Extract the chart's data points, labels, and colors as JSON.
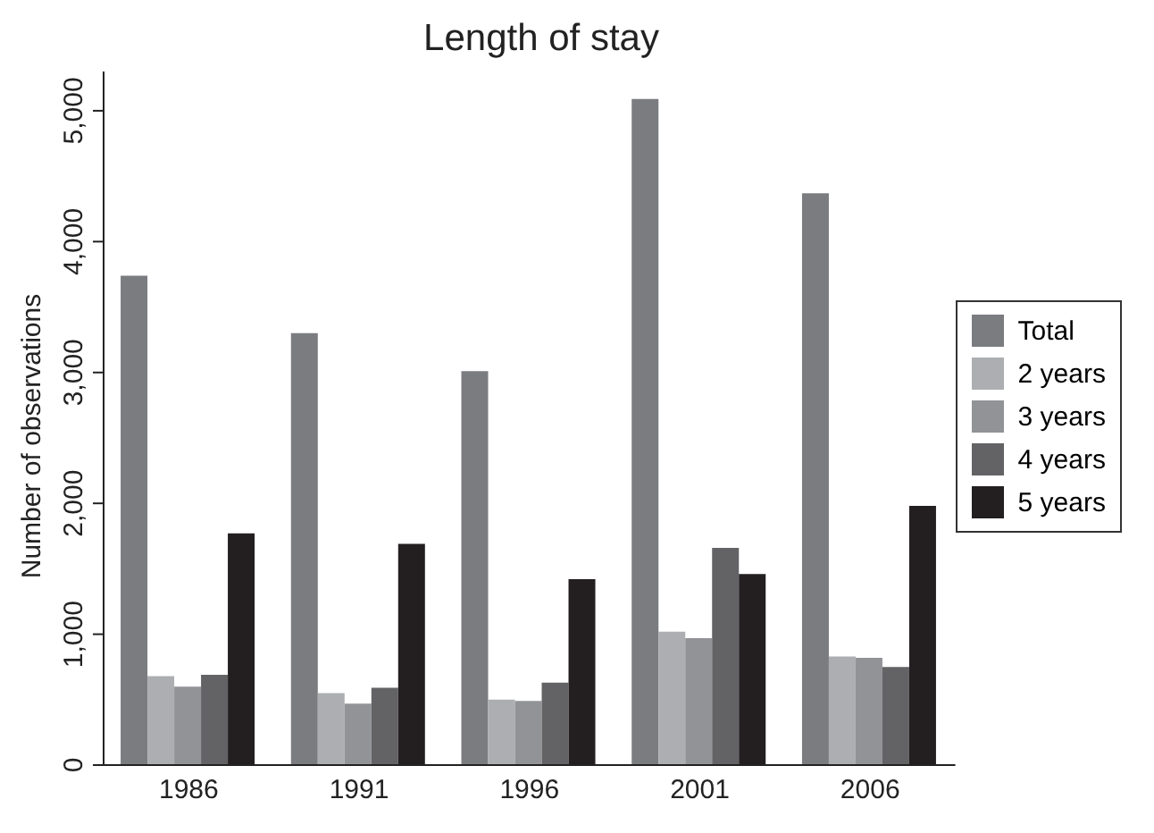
{
  "chart_data": {
    "type": "bar",
    "title": "Length of stay",
    "ylabel": "Number of observations",
    "categories": [
      "1986",
      "1991",
      "1996",
      "2001",
      "2006"
    ],
    "series": [
      {
        "name": "Total",
        "color": "#7b7c80",
        "values": [
          3740,
          3300,
          3010,
          5090,
          4370
        ]
      },
      {
        "name": "2 years",
        "color": "#adaeb1",
        "values": [
          680,
          550,
          500,
          1020,
          830
        ]
      },
      {
        "name": "3 years",
        "color": "#929397",
        "values": [
          600,
          470,
          490,
          970,
          820
        ]
      },
      {
        "name": "4 years",
        "color": "#636366",
        "values": [
          690,
          590,
          630,
          1660,
          750
        ]
      },
      {
        "name": "5 years",
        "color": "#231f20",
        "values": [
          1770,
          1690,
          1420,
          1460,
          1980
        ]
      }
    ],
    "ylim": [
      0,
      5300
    ],
    "yticks": [
      0,
      {
        "value": 1000,
        "label": "1,000"
      },
      {
        "value": 2000,
        "label": "2,000"
      },
      {
        "value": 3000,
        "label": "3,000"
      },
      {
        "value": 4000,
        "label": "4,000"
      },
      {
        "value": 5000,
        "label": "5,000"
      }
    ],
    "grid": false,
    "legend": "right"
  }
}
